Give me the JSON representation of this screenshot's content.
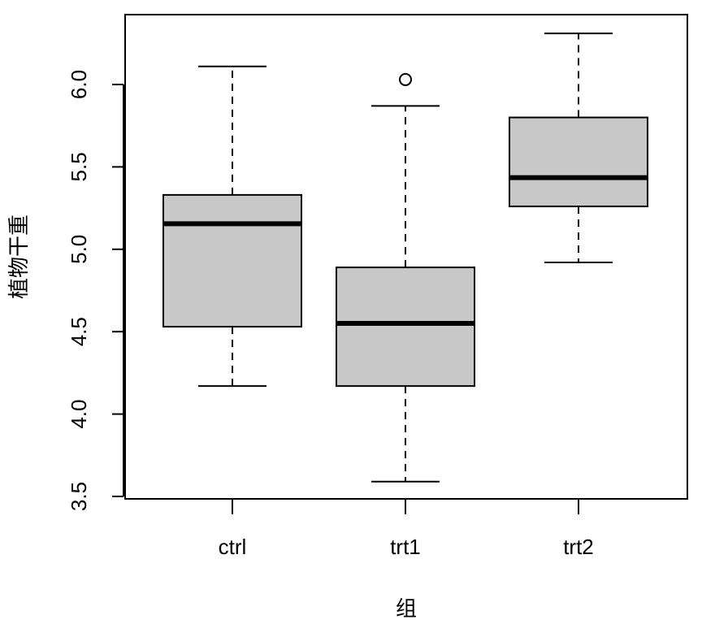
{
  "chart_data": {
    "type": "boxplot",
    "title": "",
    "xlabel": "组",
    "ylabel": "植物干重",
    "ylim": [
      3.5,
      6.25
    ],
    "yticks": [
      3.5,
      4.0,
      4.5,
      5.0,
      5.5,
      6.0
    ],
    "ytick_labels": [
      "3.5",
      "4.0",
      "4.5",
      "5.0",
      "5.5",
      "6.0"
    ],
    "categories": [
      "ctrl",
      "trt1",
      "trt2"
    ],
    "boxes": [
      {
        "category": "ctrl",
        "whisker_low": 4.17,
        "q1": 4.53,
        "median": 5.155,
        "q3": 5.33,
        "whisker_high": 6.11,
        "outliers": []
      },
      {
        "category": "trt1",
        "whisker_low": 3.59,
        "q1": 4.17,
        "median": 4.55,
        "q3": 4.89,
        "whisker_high": 5.87,
        "outliers": [
          6.03
        ]
      },
      {
        "category": "trt2",
        "whisker_low": 4.92,
        "q1": 5.26,
        "median": 5.435,
        "q3": 5.8,
        "whisker_high": 6.31,
        "outliers": []
      }
    ],
    "box_fill": "#c8c8c8",
    "line_color": "#000000",
    "grid": false
  }
}
